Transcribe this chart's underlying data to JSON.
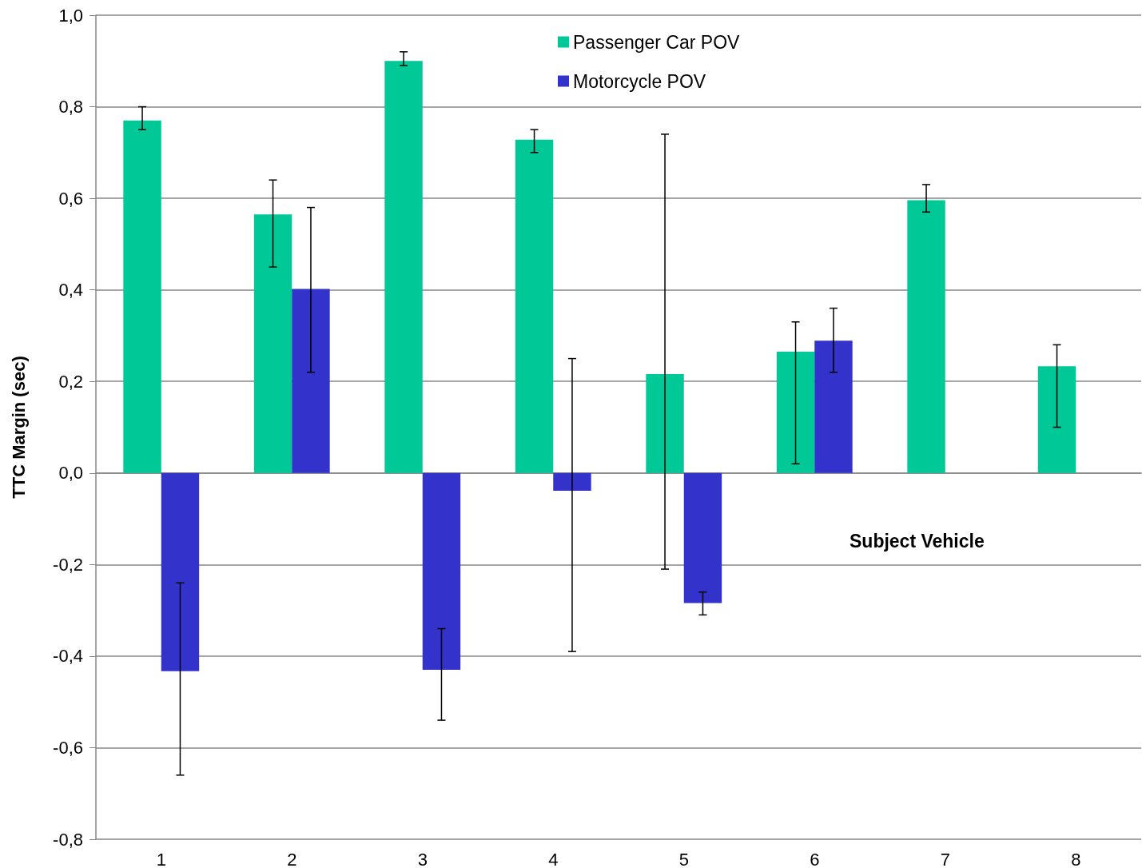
{
  "chart_data": {
    "type": "bar",
    "xlabel": "Subject Vehicle",
    "ylabel": "TTC Margin (sec)",
    "categories": [
      "1",
      "2",
      "3",
      "4",
      "5",
      "6",
      "7",
      "8"
    ],
    "series": [
      {
        "name": "Passenger Car POV",
        "color": "#00c896",
        "values": [
          0.77,
          0.565,
          0.9,
          0.728,
          0.216,
          0.265,
          0.596,
          0.233
        ],
        "errors": [
          [
            0.75,
            0.8
          ],
          [
            0.45,
            0.64
          ],
          [
            0.89,
            0.92
          ],
          [
            0.7,
            0.75
          ],
          [
            -0.21,
            0.74
          ],
          [
            0.02,
            0.33
          ],
          [
            0.57,
            0.63
          ],
          [
            0.1,
            0.28
          ]
        ]
      },
      {
        "name": "Motorcycle POV",
        "color": "#3333cc",
        "values": [
          -0.433,
          0.402,
          -0.43,
          -0.039,
          -0.284,
          0.289,
          null,
          null
        ],
        "errors": [
          [
            -0.66,
            -0.24
          ],
          [
            0.22,
            0.58
          ],
          [
            -0.54,
            -0.34
          ],
          [
            -0.39,
            0.25
          ],
          [
            -0.31,
            -0.26
          ],
          [
            0.22,
            0.36
          ],
          null,
          null
        ]
      }
    ],
    "ylim": [
      -0.8,
      1.0
    ],
    "yticks": [
      {
        "value": -0.8,
        "label": "-0,8"
      },
      {
        "value": -0.6,
        "label": "-0,6"
      },
      {
        "value": -0.4,
        "label": "-0,4"
      },
      {
        "value": -0.2,
        "label": "-0,2"
      },
      {
        "value": 0,
        "label": "0,0"
      },
      {
        "value": 0.2,
        "label": "0,2"
      },
      {
        "value": 0.4,
        "label": "0,4"
      },
      {
        "value": 0.6,
        "label": "0,6"
      },
      {
        "value": 0.8,
        "label": "0,8"
      },
      {
        "value": 1.0,
        "label": "1,0"
      }
    ],
    "grid": "y",
    "legend": "top"
  }
}
